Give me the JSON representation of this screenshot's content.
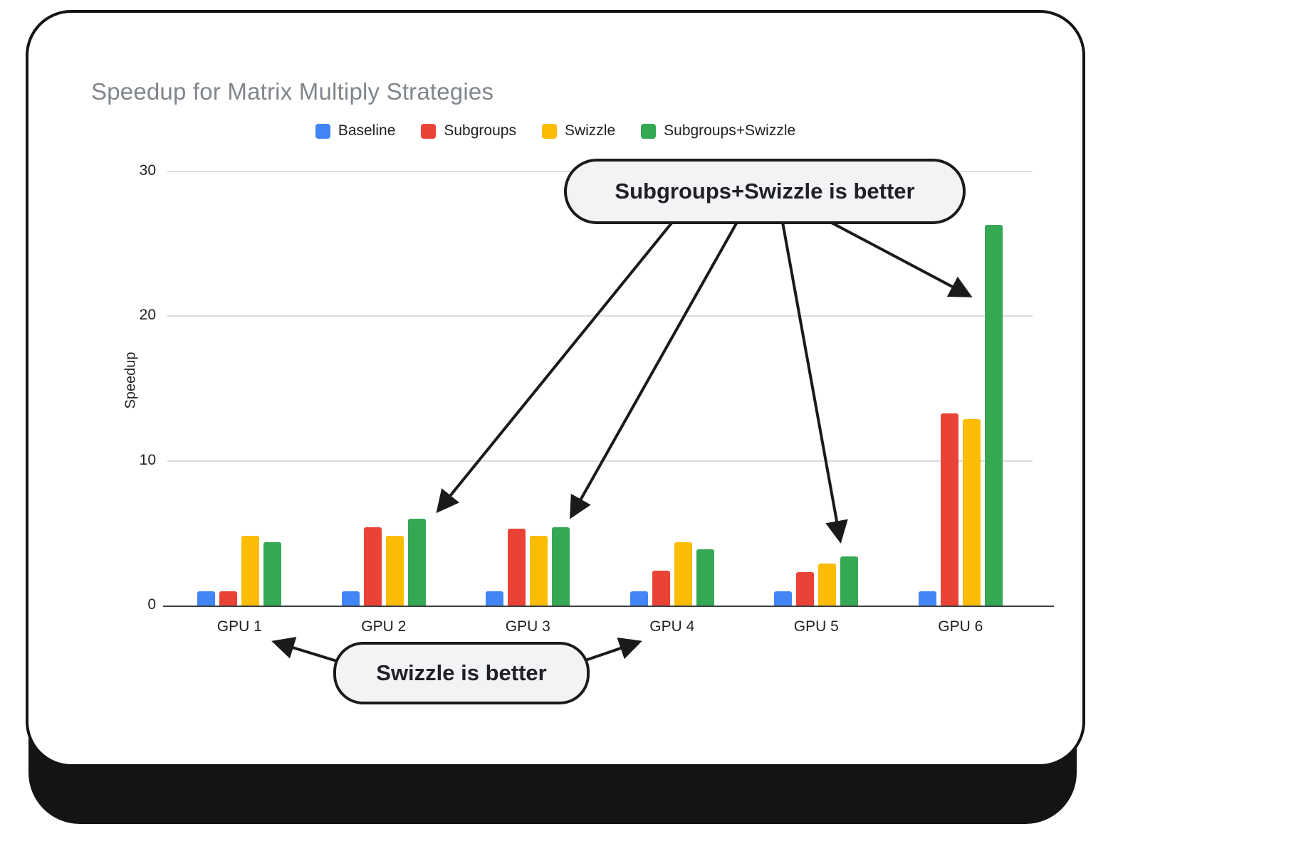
{
  "chart_data": {
    "type": "bar",
    "title": "Speedup for Matrix Multiply Strategies",
    "xlabel": "",
    "ylabel": "Speedup",
    "categories": [
      "GPU 1",
      "GPU 2",
      "GPU 3",
      "GPU 4",
      "GPU 5",
      "GPU 6"
    ],
    "series": [
      {
        "name": "Baseline",
        "color": "#4285F4",
        "values": [
          1.0,
          1.0,
          1.0,
          1.0,
          1.0,
          1.0
        ]
      },
      {
        "name": "Subgroups",
        "color": "#EA4335",
        "values": [
          1.0,
          5.4,
          5.3,
          2.4,
          2.3,
          13.3
        ]
      },
      {
        "name": "Swizzle",
        "color": "#FBBC04",
        "values": [
          4.8,
          4.8,
          4.8,
          4.4,
          2.9,
          12.9
        ]
      },
      {
        "name": "Subgroups+Swizzle",
        "color": "#34A853",
        "values": [
          4.4,
          6.0,
          5.4,
          3.9,
          3.4,
          26.3
        ]
      }
    ],
    "ylim": [
      0,
      30
    ],
    "yticks": [
      0,
      10,
      20,
      30
    ],
    "grid": true,
    "legend_position": "top"
  },
  "annotations": {
    "top_callout": {
      "label": "Subgroups+Swizzle is better"
    },
    "bottom_callout": {
      "label": "Swizzle is better"
    }
  },
  "frame": {
    "card_background": "#ffffff",
    "border_color": "#141414",
    "callout_background": "#f1f3f4",
    "gridline_color": "#dadce0"
  }
}
